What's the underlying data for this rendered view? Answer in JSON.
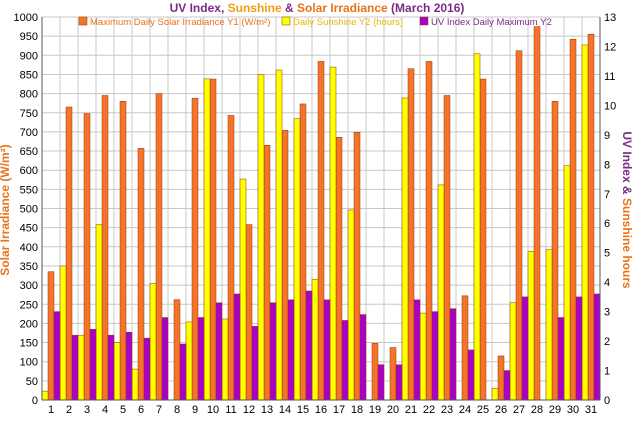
{
  "chart_data": {
    "type": "bar",
    "title_parts": [
      {
        "text": "UV Index",
        "color": "#7b2a86"
      },
      {
        "text": ", ",
        "color": "#7b2a86"
      },
      {
        "text": "Sunshine",
        "color": "#f39c12"
      },
      {
        "text": " & ",
        "color": "#7b2a86"
      },
      {
        "text": "Solar Irradiance",
        "color": "#e8731a"
      },
      {
        "text": " (March 2016)",
        "color": "#7b2a86"
      }
    ],
    "ylabel_left": "Solar Irradiance (W/m²)",
    "ylabel_right_parts": [
      {
        "text": "UV Index",
        "color": "#7b2a86"
      },
      {
        "text": " & ",
        "color": "#7b2a86"
      },
      {
        "text": "Sunshine hours",
        "color": "#e8731a"
      }
    ],
    "ylim_left": [
      0,
      1000
    ],
    "ylim_right": [
      0,
      13
    ],
    "left_ticks": [
      0,
      50,
      100,
      150,
      200,
      250,
      300,
      350,
      400,
      450,
      500,
      550,
      600,
      650,
      700,
      750,
      800,
      850,
      900,
      950,
      1000
    ],
    "right_ticks": [
      0,
      1,
      2,
      3,
      4,
      5,
      6,
      7,
      8,
      9,
      10,
      11,
      12,
      13
    ],
    "categories": [
      "1",
      "2",
      "3",
      "4",
      "5",
      "6",
      "7",
      "8",
      "9",
      "10",
      "11",
      "12",
      "13",
      "14",
      "15",
      "16",
      "17",
      "18",
      "19",
      "20",
      "21",
      "22",
      "23",
      "24",
      "25",
      "26",
      "27",
      "28",
      "29",
      "30",
      "31"
    ],
    "series": [
      {
        "name": "Maximum Daily Solar Irradiance Y1 (W/m²)",
        "axis": "left",
        "color": "#f4742b",
        "values": [
          335,
          765,
          748,
          795,
          780,
          657,
          800,
          262,
          788,
          838,
          743,
          458,
          665,
          704,
          773,
          884,
          686,
          699,
          148,
          137,
          865,
          884,
          795,
          272,
          838,
          115,
          912,
          975,
          780,
          942,
          955
        ]
      },
      {
        "name": "Daily Sunshine Y2 (hours)",
        "axis": "right",
        "color": "#ffff00",
        "values": [
          0.3,
          4.55,
          2.2,
          5.95,
          1.95,
          1.05,
          3.95,
          0.0,
          2.65,
          10.9,
          2.75,
          7.5,
          11.05,
          11.2,
          9.55,
          4.1,
          11.3,
          6.45,
          0.0,
          0.0,
          10.25,
          2.95,
          7.3,
          0.0,
          11.75,
          0.4,
          3.3,
          5.05,
          5.1,
          7.95,
          12.05
        ]
      },
      {
        "name": "UV Index Daily Maximum Y2",
        "axis": "right",
        "color": "#aa00cc",
        "values": [
          3.0,
          2.2,
          2.4,
          2.2,
          2.3,
          2.1,
          2.8,
          1.9,
          2.8,
          3.3,
          3.6,
          2.5,
          3.3,
          3.4,
          3.7,
          3.4,
          2.7,
          2.9,
          1.2,
          1.2,
          3.4,
          3.0,
          3.1,
          1.7,
          0.0,
          1.0,
          3.5,
          0.0,
          2.8,
          3.5,
          3.6
        ]
      }
    ],
    "legend_position": "top-center",
    "grid": true
  },
  "colors": {
    "grid": "#c8c8c8",
    "axis_text": "#000000",
    "left_label": "#e8731a",
    "title_default": "#7b2a86",
    "legend_text_1": "#e8731a",
    "legend_text_2": "#e6b800",
    "legend_text_3": "#7b2a86"
  }
}
